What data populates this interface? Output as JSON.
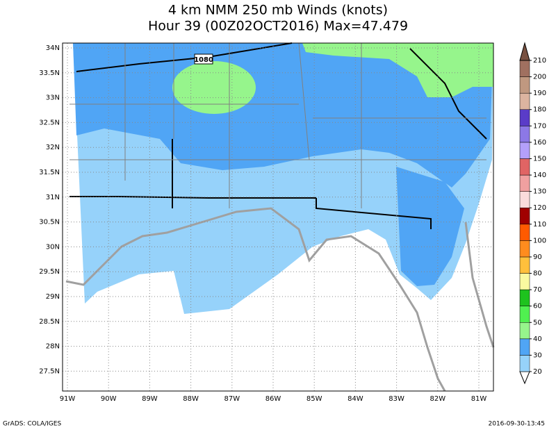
{
  "title": [
    "4 km NMM 250 mb Winds (knots)",
    "Hour 39 (00Z02OCT2016) Max=47.479"
  ],
  "map": {
    "lat_labels": [
      "34N",
      "33.5N",
      "33N",
      "32.5N",
      "32N",
      "31.5N",
      "31N",
      "30.5N",
      "30N",
      "29.5N",
      "29N",
      "28.5N",
      "28N",
      "27.5N"
    ],
    "lon_labels": [
      "91W",
      "90W",
      "89W",
      "88W",
      "87W",
      "86W",
      "85W",
      "84W",
      "83W",
      "82W",
      "81W"
    ],
    "contour_label": "1080"
  },
  "colorbar": {
    "ticks": [
      20,
      30,
      40,
      50,
      60,
      70,
      80,
      90,
      100,
      110,
      120,
      130,
      140,
      150,
      160,
      170,
      180,
      190,
      200,
      210
    ],
    "colors": [
      "#ffffff",
      "#96d2fa",
      "#50a5f5",
      "#96f58c",
      "#50f050",
      "#1ec31e",
      "#fafaa0",
      "#ffc03c",
      "#ff8c1e",
      "#ff5a00",
      "#a00000",
      "#fadcdc",
      "#f0a0a0",
      "#e06464",
      "#b4a0fa",
      "#8c78e6",
      "#5a3cc8",
      "#dcb4a0",
      "#c09880",
      "#a07060",
      "#785040"
    ]
  },
  "footer": {
    "left": "GrADS: COLA/IGES",
    "right": "2016-09-30-13:45"
  }
}
